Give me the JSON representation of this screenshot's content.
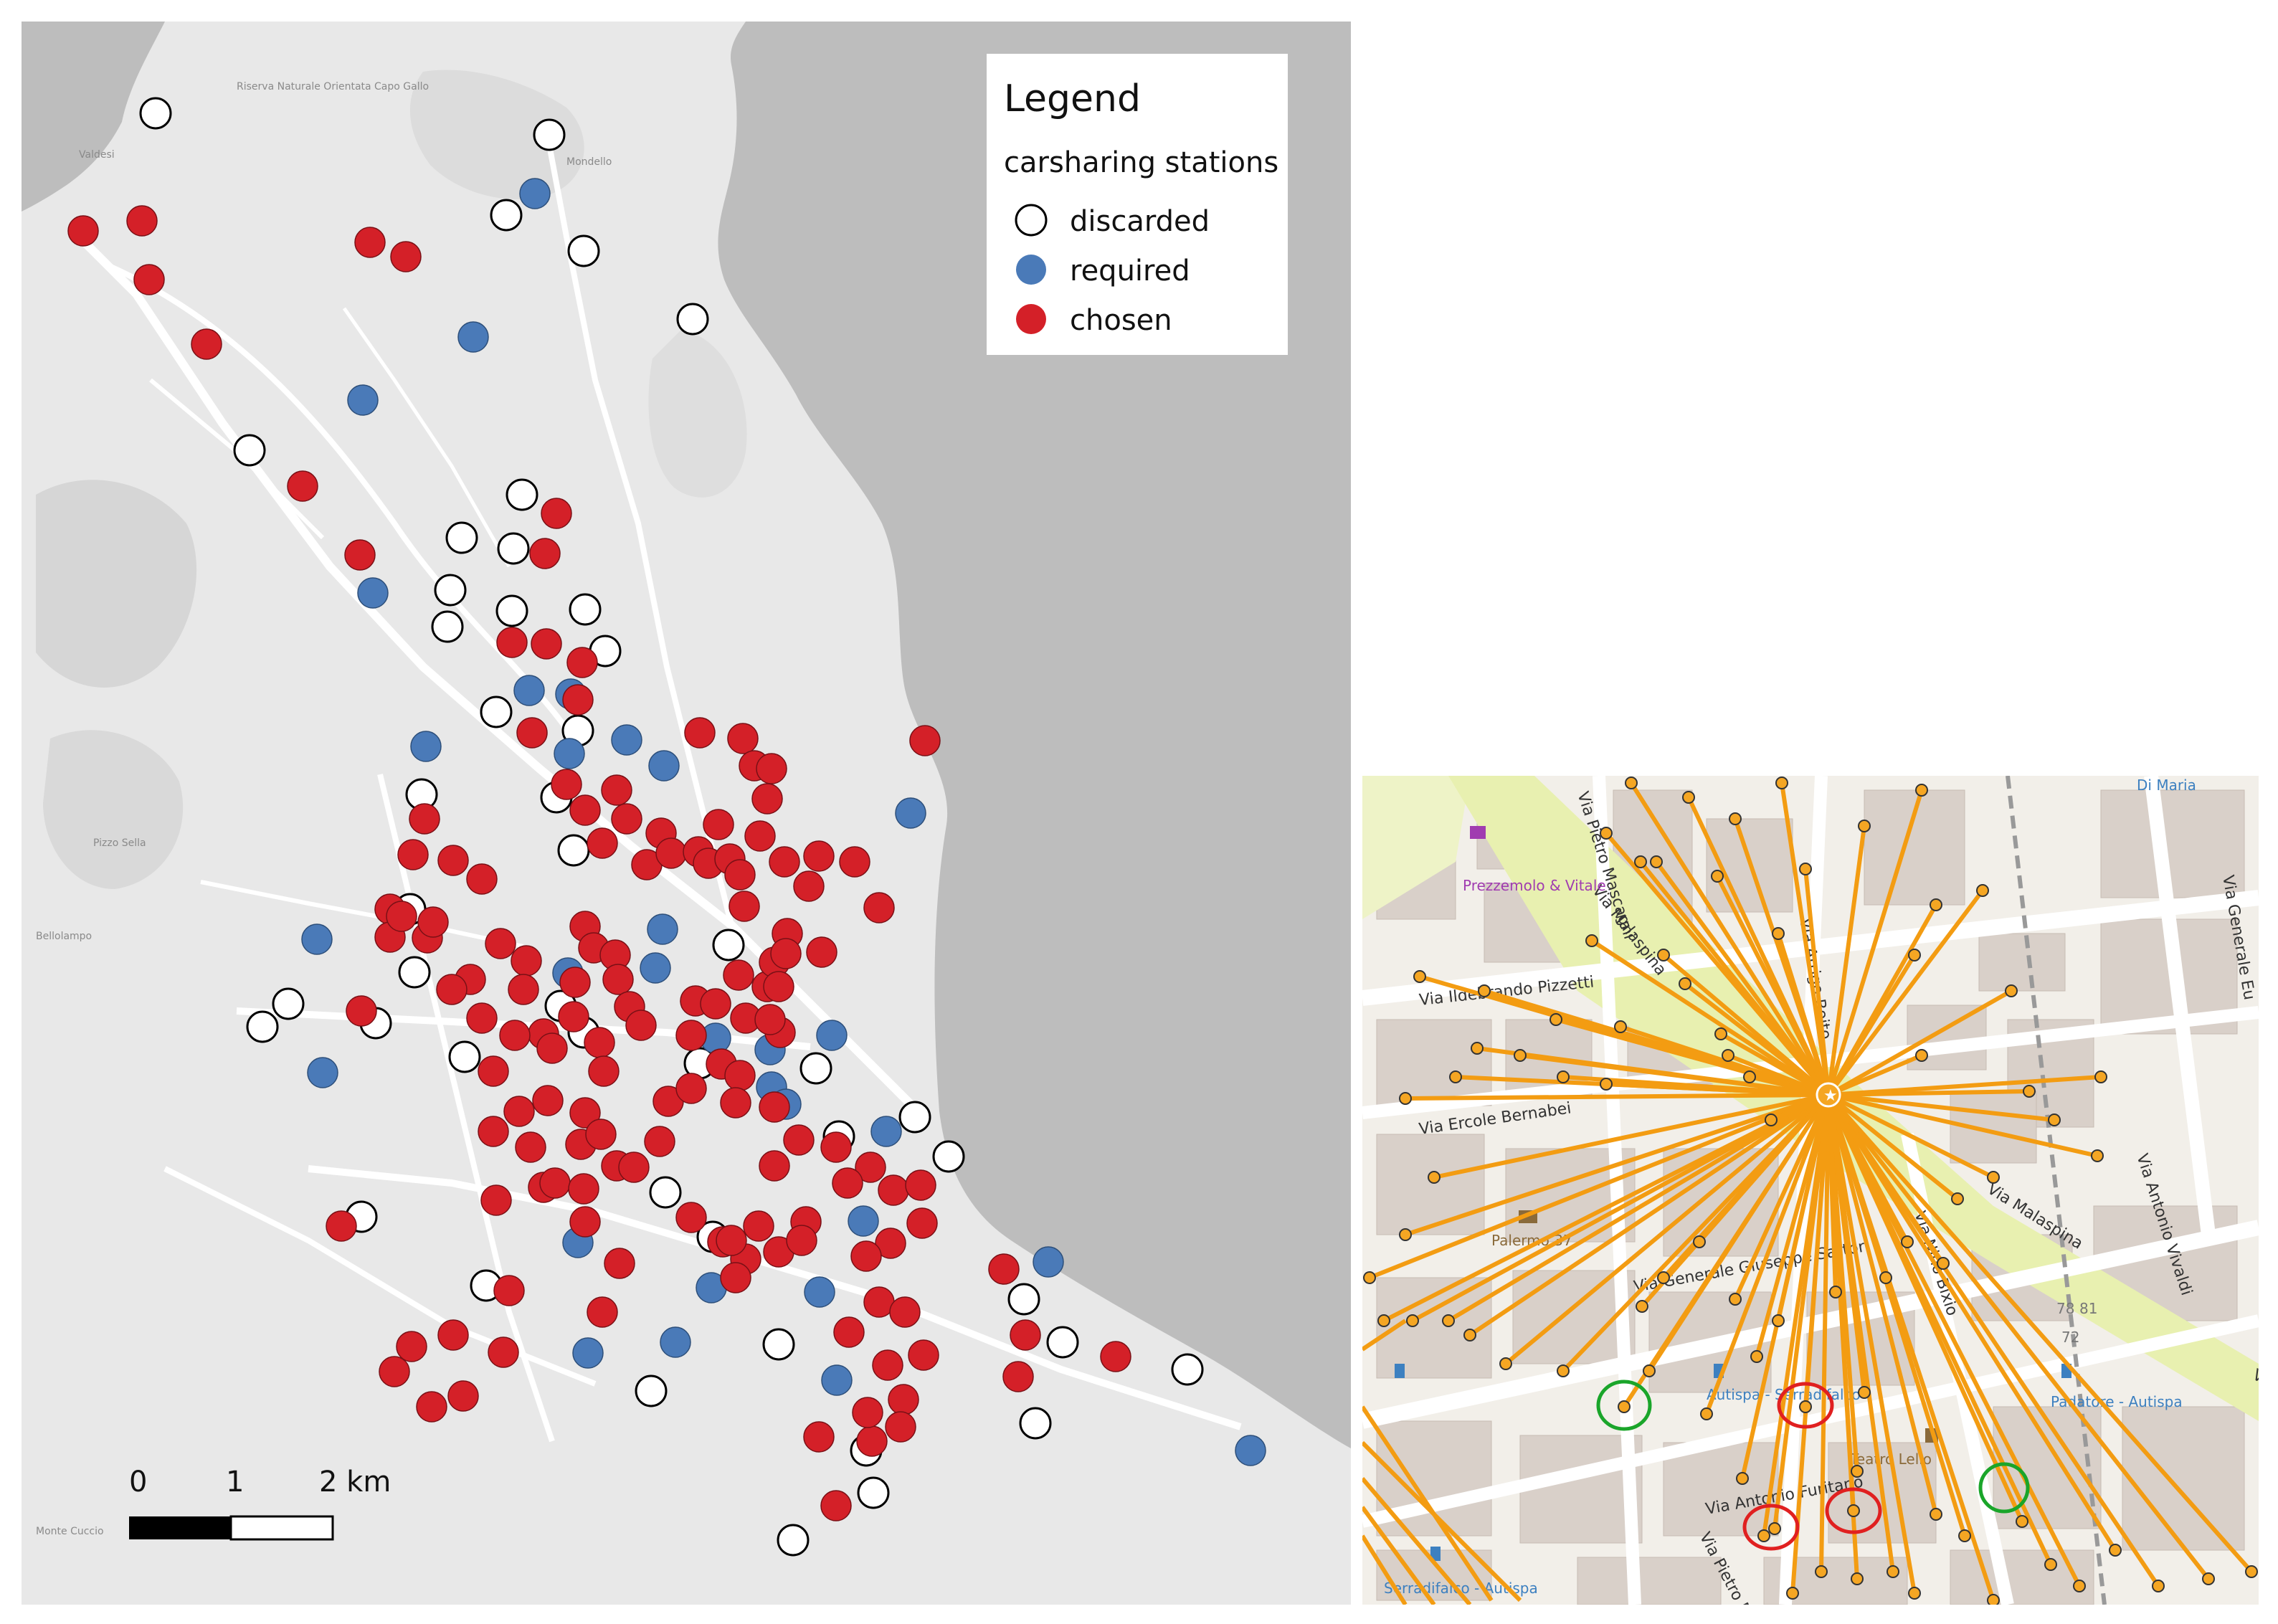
{
  "legend": {
    "title": "Legend",
    "subtitle": "carsharing stations",
    "items": [
      {
        "label": "discarded",
        "color": "#ffffff"
      },
      {
        "label": "required",
        "color": "#4a7ab8"
      },
      {
        "label": "chosen",
        "color": "#d42028"
      }
    ]
  },
  "scalebar": {
    "labels": [
      "0",
      "1",
      "2 km"
    ]
  },
  "colors": {
    "map_land": "#e8e8e8",
    "sea": "#bfbfbf",
    "discarded": "#ffffff",
    "required": "#4a7ab8",
    "chosen": "#d42028",
    "connection_line": "#f39c12",
    "node": "#f5a623",
    "green_circle": "#1aa52a",
    "red_circle": "#e02020"
  },
  "left_map_labels": [
    "Riserva Naturale Orientata Capo Gallo",
    "Mondello",
    "Valdesi",
    "Pizzo Sella",
    "Bellolampo",
    "Monte Cuccio"
  ],
  "right_map_labels": {
    "places": [
      "Prezzemolo & Vitale",
      "Palermo 37",
      "Di Maria",
      "Teatro Lelio",
      "Serradifalco - Autispa",
      "Autispa - Serradifalco",
      "Padatore - Autispa"
    ],
    "streets": [
      "Via Ildebrando Pizzetti",
      "Via Ercole Bernabei",
      "Via Malaspina",
      "Via Generale Giuseppe Sartori",
      "Via Nino Bixio",
      "Via Antonio Vivaldi",
      "Via Generale Eu",
      "Via Pietro Mascagni",
      "Via Arrigo Boito",
      "Via Antonio Furitano",
      "Via Pietro M",
      "Serradifalco"
    ],
    "numbers": [
      "78",
      "81",
      "72"
    ]
  }
}
